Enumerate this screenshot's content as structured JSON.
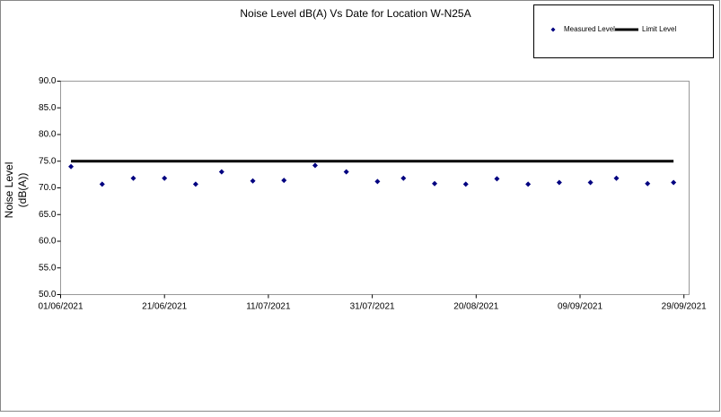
{
  "chart_data": {
    "type": "scatter",
    "title": "Noise Level dB(A) Vs Date for Location W-N25A",
    "y_label": [
      "Noise Level",
      "(dB(A))"
    ],
    "xlim": [
      "01/06/2021",
      "30/09/2021"
    ],
    "xticks": [
      "01/06/2021",
      "21/06/2021",
      "11/07/2021",
      "31/07/2021",
      "20/08/2021",
      "09/09/2021",
      "29/09/2021"
    ],
    "ylim": [
      50,
      90
    ],
    "yticks": [
      {
        "value": 50,
        "label": "50.0"
      },
      {
        "value": 55,
        "label": "55.0"
      },
      {
        "value": 60,
        "label": "60.0"
      },
      {
        "value": 65,
        "label": "65.0"
      },
      {
        "value": 70,
        "label": "70.0"
      },
      {
        "value": 75,
        "label": "75.0"
      },
      {
        "value": 80,
        "label": "80.0"
      },
      {
        "value": 85,
        "label": "85.0"
      },
      {
        "value": 90,
        "label": "90.0"
      }
    ],
    "legend": "top-right",
    "series": [
      {
        "name": "Measured Level",
        "color": "#000080",
        "mode": "markers",
        "x": [
          "03/06/2021",
          "09/06/2021",
          "15/06/2021",
          "21/06/2021",
          "27/06/2021",
          "02/07/2021",
          "08/07/2021",
          "14/07/2021",
          "20/07/2021",
          "26/07/2021",
          "01/08/2021",
          "06/08/2021",
          "12/08/2021",
          "18/08/2021",
          "24/08/2021",
          "30/08/2021",
          "05/09/2021",
          "11/09/2021",
          "16/09/2021",
          "22/09/2021",
          "27/09/2021"
        ],
        "values": [
          74.0,
          70.7,
          71.8,
          71.8,
          70.7,
          73.0,
          71.3,
          71.4,
          74.2,
          73.0,
          71.2,
          71.8,
          70.8,
          70.7,
          71.7,
          70.7,
          71.0,
          71.0,
          71.8,
          70.8,
          71.0
        ]
      },
      {
        "name": "Limit Level",
        "color": "#000000",
        "mode": "line",
        "x": [
          "03/06/2021",
          "27/09/2021"
        ],
        "values": [
          75,
          75
        ]
      }
    ]
  }
}
